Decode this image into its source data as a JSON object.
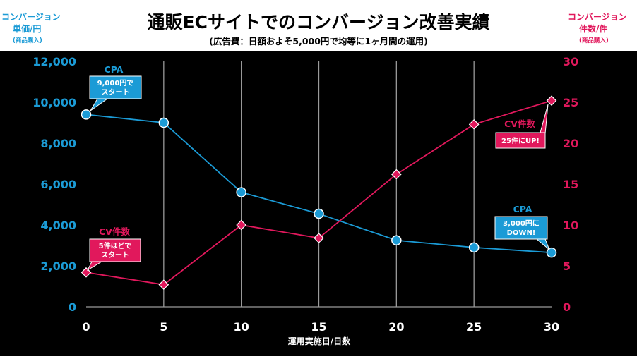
{
  "colors": {
    "cpa": "#1b9bd6",
    "cv": "#e1185c",
    "plot_bg": "#000000",
    "grid": "#9a9a9a",
    "page_bg": "#ffffff"
  },
  "chart_data": {
    "type": "line",
    "title": "通販ECサイトでのコンバージョン改善実績",
    "subtitle": "(広告費：日額およそ5,000円で均等に1ヶ月間の運用)",
    "xlabel": "運用実施日/日数",
    "left_axis": {
      "label_line1": "コンバージョン",
      "label_line2": "単価/円",
      "label_note": "(商品購入)",
      "ticks": [
        "0",
        "2,000",
        "4,000",
        "6,000",
        "8,000",
        "10,000",
        "12,000"
      ],
      "ylim": [
        0,
        12000
      ]
    },
    "right_axis": {
      "label_line1": "コンバージョン",
      "label_line2": "件数/件",
      "label_note": "(商品購入)",
      "ticks": [
        "0",
        "5",
        "10",
        "15",
        "20",
        "25",
        "30"
      ],
      "ylim": [
        0,
        30
      ]
    },
    "x_ticks": [
      "0",
      "5",
      "10",
      "15",
      "20",
      "25",
      "30"
    ],
    "xlim": [
      0,
      30
    ],
    "grid": "vertical",
    "series": [
      {
        "key": "cpa",
        "axis": "left",
        "marker": "circle",
        "x": [
          0,
          5,
          10,
          15,
          20,
          25,
          30
        ],
        "values": [
          9400,
          9000,
          5600,
          4550,
          3250,
          2900,
          2650
        ]
      },
      {
        "key": "cv",
        "axis": "right",
        "marker": "diamond",
        "x": [
          0,
          5,
          10,
          15,
          20,
          25,
          30
        ],
        "values": [
          4.2,
          2.7,
          10.0,
          8.4,
          16.2,
          22.3,
          25.2
        ]
      }
    ],
    "annotations": {
      "cpa_start": {
        "label": "CPA",
        "line1": "9,000円で",
        "line2": "スタート"
      },
      "cpa_end": {
        "label": "CPA",
        "line1": "3,000円に",
        "line2": "DOWN!"
      },
      "cv_start": {
        "label": "CV件数",
        "line1": "5件ほどで",
        "line2": "スタート"
      },
      "cv_end": {
        "label": "CV件数",
        "line1": "25件にUP!"
      }
    }
  }
}
